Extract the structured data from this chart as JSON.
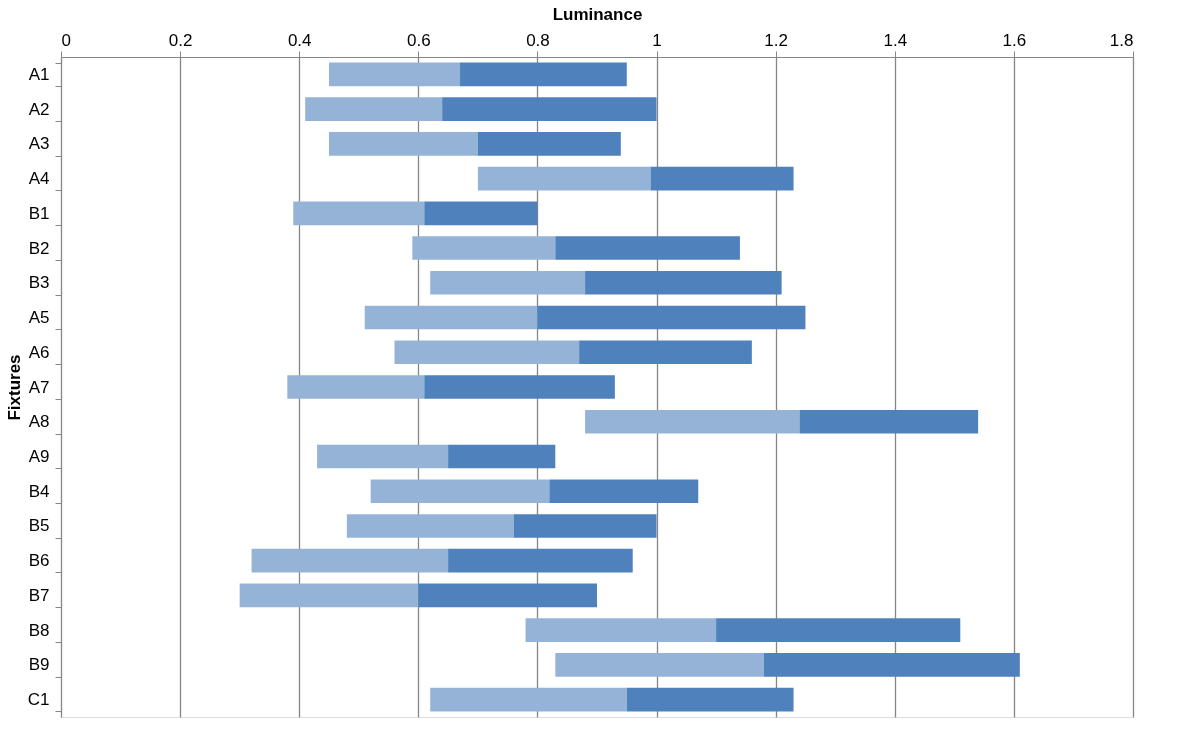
{
  "chart_data": {
    "type": "bar",
    "orientation": "horizontal",
    "xlabel": "Luminance",
    "ylabel": "Fixtures",
    "categories": [
      "A1",
      "A2",
      "A3",
      "A4",
      "B1",
      "B2",
      "B3",
      "A5",
      "A6",
      "A7",
      "A8",
      "A9",
      "B4",
      "B5",
      "B6",
      "B7",
      "B8",
      "B9",
      "C1"
    ],
    "series": [
      {
        "color": "#95b3d7",
        "base": [
          0.45,
          0.41,
          0.45,
          0.7,
          0.39,
          0.59,
          0.62,
          0.51,
          0.56,
          0.38,
          0.88,
          0.43,
          0.52,
          0.48,
          0.32,
          0.3,
          0.78,
          0.83,
          0.62
        ],
        "values": [
          0.22,
          0.23,
          0.25,
          0.29,
          0.22,
          0.24,
          0.26,
          0.29,
          0.31,
          0.23,
          0.36,
          0.22,
          0.3,
          0.28,
          0.33,
          0.3,
          0.32,
          0.35,
          0.33
        ]
      },
      {
        "color": "#4f81bd",
        "base": [
          0.67,
          0.64,
          0.7,
          0.99,
          0.61,
          0.83,
          0.88,
          0.8,
          0.87,
          0.61,
          1.24,
          0.65,
          0.82,
          0.76,
          0.65,
          0.6,
          1.1,
          1.18,
          0.95
        ],
        "values": [
          0.28,
          0.36,
          0.24,
          0.24,
          0.19,
          0.31,
          0.33,
          0.45,
          0.29,
          0.32,
          0.3,
          0.18,
          0.25,
          0.24,
          0.31,
          0.3,
          0.41,
          0.43,
          0.28
        ]
      }
    ],
    "xlim": [
      0,
      1.8
    ],
    "xticks": [
      0,
      0.2,
      0.4,
      0.6,
      0.8,
      1,
      1.2,
      1.4,
      1.6,
      1.8
    ],
    "grid": "x",
    "legend": false
  }
}
